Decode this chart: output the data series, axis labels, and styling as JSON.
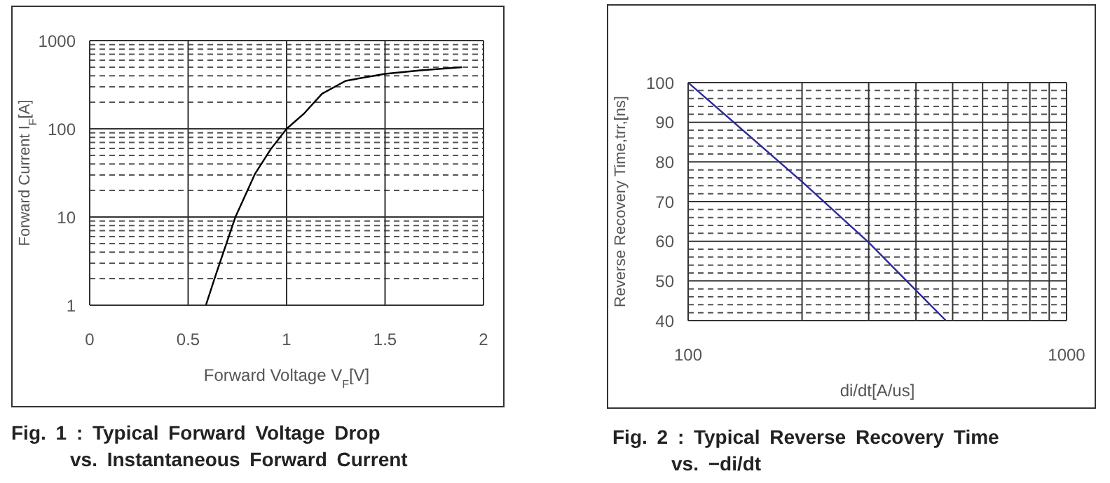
{
  "chart_data": [
    {
      "type": "line",
      "title": "Fig.  1 :  Typical Forward Voltage Drop\nvs.  Instantaneous Forward Current",
      "xlabel": "Forward Voltage V$_{F}$[V]",
      "ylabel": "Forward Current I$_{F}$[A]",
      "log": "y",
      "grid": true,
      "xlim": [
        0,
        2
      ],
      "ylim": [
        1,
        1000
      ],
      "xticks": [
        0,
        {
          "value": 0.5,
          "label": "0.5"
        },
        1,
        {
          "value": 1.5,
          "label": "1.5"
        },
        2
      ],
      "yticks": [
        1,
        {
          "value": 2,
          "label": null
        },
        {
          "value": 3,
          "label": null
        },
        {
          "value": 4,
          "label": null
        },
        {
          "value": 5,
          "label": null
        },
        {
          "value": 6,
          "label": null
        },
        {
          "value": 7,
          "label": null
        },
        {
          "value": 8,
          "label": null
        },
        {
          "value": 9,
          "label": null
        },
        10,
        {
          "value": 20,
          "label": null
        },
        {
          "value": 30,
          "label": null
        },
        {
          "value": 40,
          "label": null
        },
        {
          "value": 50,
          "label": null
        },
        {
          "value": 60,
          "label": null
        },
        {
          "value": 70,
          "label": null
        },
        {
          "value": 80,
          "label": null
        },
        {
          "value": 90,
          "label": null
        },
        100,
        {
          "value": 200,
          "label": null
        },
        {
          "value": 300,
          "label": null
        },
        {
          "value": 400,
          "label": null
        },
        {
          "value": 500,
          "label": null
        },
        {
          "value": 600,
          "label": null
        },
        {
          "value": 700,
          "label": null
        },
        {
          "value": 800,
          "label": null
        },
        {
          "value": 900,
          "label": null
        },
        1000
      ],
      "x": [
        0.59,
        0.64,
        0.74,
        0.84,
        0.92,
        1.0,
        1.09,
        1.18,
        1.3,
        1.5,
        1.68,
        1.89
      ],
      "series": [
        {
          "color": "#000000",
          "values": [
            1,
            2.2,
            10,
            31,
            59,
            100,
            150,
            250,
            350,
            420,
            460,
            500
          ]
        }
      ]
    },
    {
      "type": "line",
      "title": "Fig.  2 :  Typical Reverse Recovery Time\nvs.  −di/dt",
      "xlabel": "di/dt[A/us]",
      "ylabel": "Reverse Recovery Time,trr,[ns]",
      "log": "x",
      "grid": true,
      "xlim": [
        100,
        1000
      ],
      "ylim": [
        40,
        100
      ],
      "xticks": [
        100,
        {
          "value": 200,
          "label": null
        },
        {
          "value": 300,
          "label": null
        },
        {
          "value": 400,
          "label": null
        },
        {
          "value": 500,
          "label": null
        },
        {
          "value": 600,
          "label": null
        },
        {
          "value": 700,
          "label": null
        },
        {
          "value": 800,
          "label": null
        },
        {
          "value": 900,
          "label": null
        },
        1000
      ],
      "yticks": [
        40,
        {
          "value": 42,
          "label": null
        },
        {
          "value": 44,
          "label": null
        },
        {
          "value": 46,
          "label": null
        },
        {
          "value": 48,
          "label": null
        },
        50,
        {
          "value": 52,
          "label": null
        },
        {
          "value": 54,
          "label": null
        },
        {
          "value": 56,
          "label": null
        },
        {
          "value": 58,
          "label": null
        },
        60,
        {
          "value": 62,
          "label": null
        },
        {
          "value": 64,
          "label": null
        },
        {
          "value": 66,
          "label": null
        },
        {
          "value": 68,
          "label": null
        },
        70,
        {
          "value": 72,
          "label": null
        },
        {
          "value": 74,
          "label": null
        },
        {
          "value": 76,
          "label": null
        },
        {
          "value": 78,
          "label": null
        },
        80,
        {
          "value": 82,
          "label": null
        },
        {
          "value": 84,
          "label": null
        },
        {
          "value": 86,
          "label": null
        },
        {
          "value": 88,
          "label": null
        },
        90,
        {
          "value": 92,
          "label": null
        },
        {
          "value": 94,
          "label": null
        },
        {
          "value": 96,
          "label": null
        },
        {
          "value": 98,
          "label": null
        },
        100
      ],
      "x": [
        100,
        200,
        300,
        400,
        480
      ],
      "series": [
        {
          "color": "#2b2b9a",
          "values": [
            100,
            75,
            59.7,
            47.6,
            40
          ]
        }
      ]
    }
  ]
}
